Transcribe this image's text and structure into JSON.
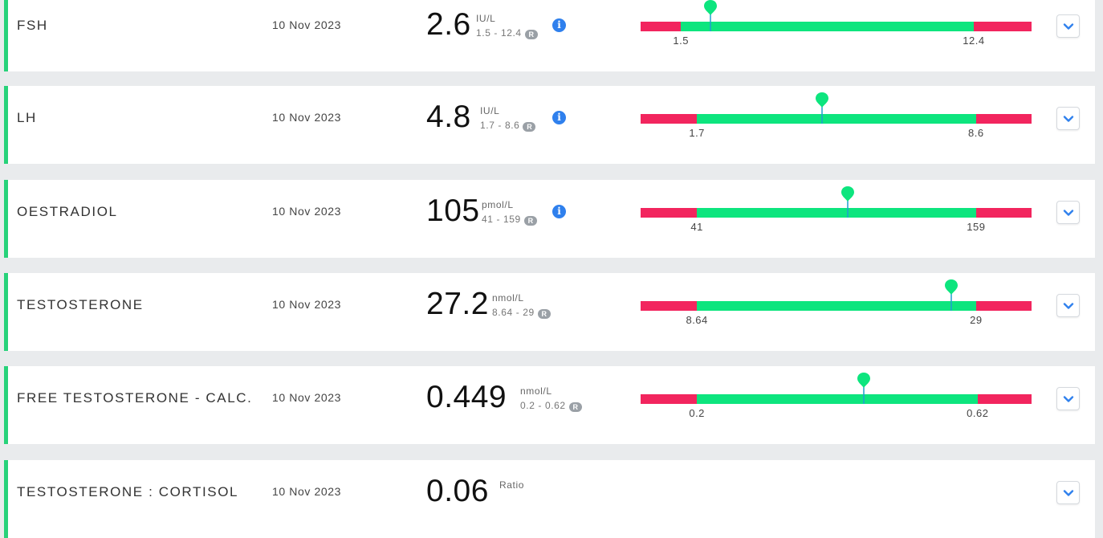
{
  "results": [
    {
      "name": "FSH",
      "date": "10 Nov 2023",
      "value": "2.6",
      "unit": "IU/L",
      "range_text": "1.5 - 12.4",
      "ref_badge": "R",
      "has_info": true,
      "low_label": "1.5",
      "high_label": "12.4",
      "gauge": {
        "low_fraction": 0.103,
        "high_fraction": 0.852,
        "marker_fraction": 0.178
      }
    },
    {
      "name": "LH",
      "date": "10 Nov 2023",
      "value": "4.8",
      "unit": "IU/L",
      "range_text": "1.7 - 8.6",
      "ref_badge": "R",
      "has_info": true,
      "low_label": "1.7",
      "high_label": "8.6",
      "gauge": {
        "low_fraction": 0.144,
        "high_fraction": 0.858,
        "marker_fraction": 0.464
      }
    },
    {
      "name": "OESTRADIOL",
      "date": "10 Nov 2023",
      "value": "105",
      "unit": "pmol/L",
      "range_text": "41 - 159",
      "ref_badge": "R",
      "has_info": true,
      "low_label": "41",
      "high_label": "159",
      "gauge": {
        "low_fraction": 0.144,
        "high_fraction": 0.858,
        "marker_fraction": 0.53
      }
    },
    {
      "name": "TESTOSTERONE",
      "date": "10 Nov 2023",
      "value": "27.2",
      "unit": "nmol/L",
      "range_text": "8.64 - 29",
      "ref_badge": "R",
      "has_info": false,
      "low_label": "8.64",
      "high_label": "29",
      "gauge": {
        "low_fraction": 0.144,
        "high_fraction": 0.858,
        "marker_fraction": 0.795
      }
    },
    {
      "name": "FREE TESTOSTERONE - CALC.",
      "date": "10 Nov 2023",
      "value": "0.449",
      "unit": "nmol/L",
      "range_text": "0.2 - 0.62",
      "ref_badge": "R",
      "has_info": false,
      "low_label": "0.2",
      "high_label": "0.62",
      "gauge": {
        "low_fraction": 0.144,
        "high_fraction": 0.862,
        "marker_fraction": 0.571
      }
    },
    {
      "name": "TESTOSTERONE : CORTISOL",
      "date": "10 Nov 2023",
      "value": "0.06",
      "unit": "Ratio",
      "range_text": "",
      "ref_badge": "",
      "has_info": false,
      "low_label": "",
      "high_label": "",
      "gauge": null
    }
  ],
  "colors": {
    "accent": "#27d27a",
    "in_range": "#0de57e",
    "out_of_range": "#f2255e",
    "marker": "#0de57e",
    "info": "#2f80ed"
  },
  "icons": {
    "info": "info-icon",
    "expand": "chevron-down-icon",
    "marker": "map-pin-icon"
  }
}
